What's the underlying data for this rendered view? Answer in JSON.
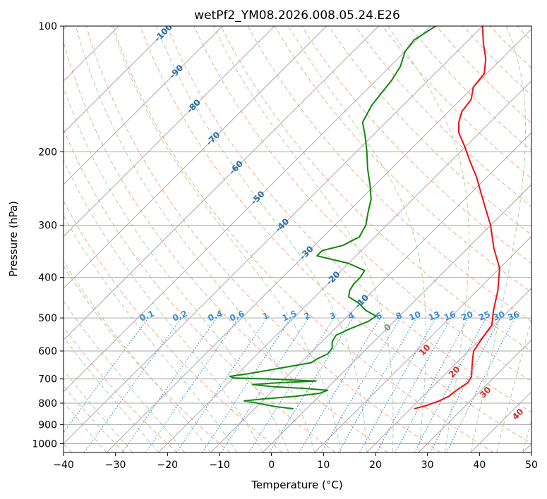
{
  "chart_data": {
    "type": "line",
    "subtype": "skew-t log-p diagram",
    "title": "wetPf2_YM08.2026.008.05.24.E26",
    "xlabel": "Temperature (°C)",
    "ylabel": "Pressure (hPa)",
    "xlim": [
      -40,
      50
    ],
    "ylim": [
      1050,
      100
    ],
    "x_ticks": [
      -40,
      -30,
      -20,
      -10,
      0,
      10,
      20,
      30,
      40,
      50
    ],
    "y_ticks": [
      100,
      200,
      300,
      400,
      500,
      600,
      700,
      800,
      900,
      1000
    ],
    "colors": {
      "temperature": "#ee1111",
      "dewpoint": "#118811",
      "isotherm": "#aaaaaa",
      "dry_adiabat": "#f5a88a",
      "moist_adiabat": "#a8d5a0",
      "mixing_ratio": "#3d8fd9",
      "isotherm_label": "#2a6db0",
      "moist_label": "#d0302a",
      "zero_label": "#888888"
    },
    "isotherm_labels": [
      "-100",
      "-90",
      "-80",
      "-70",
      "-60",
      "-50",
      "-40",
      "-30",
      "-20",
      "-10"
    ],
    "isotherm_label_values": [
      -100,
      -90,
      -80,
      -70,
      -60,
      -50,
      -40,
      -30,
      -20,
      -10
    ],
    "zero_label": "0",
    "moist_adiabat_labels": [
      "10",
      "20",
      "30",
      "40"
    ],
    "moist_adiabat_label_values": [
      10,
      20,
      30,
      40
    ],
    "mixing_ratio_labels": [
      "0.1",
      "0.2",
      "0.4",
      "0.6",
      "1",
      "1.5",
      "2",
      "3",
      "4",
      "6",
      "8",
      "10",
      "13",
      "16",
      "20",
      "25",
      "30",
      "36"
    ],
    "mixing_ratio_values": [
      0.1,
      0.2,
      0.4,
      0.6,
      1,
      1.5,
      2,
      3,
      4,
      6,
      8,
      10,
      13,
      16,
      20,
      25,
      30,
      36
    ],
    "series": [
      {
        "name": "Temperature",
        "points": [
          {
            "p": 825,
            "t": 20.7
          },
          {
            "p": 810,
            "t": 22.5
          },
          {
            "p": 790,
            "t": 24.0
          },
          {
            "p": 770,
            "t": 25.0
          },
          {
            "p": 750,
            "t": 25.2
          },
          {
            "p": 735,
            "t": 25.5
          },
          {
            "p": 715,
            "t": 26.0
          },
          {
            "p": 690,
            "t": 25.5
          },
          {
            "p": 660,
            "t": 24.0
          },
          {
            "p": 630,
            "t": 22.5
          },
          {
            "p": 600,
            "t": 21.0
          },
          {
            "p": 560,
            "t": 20.2
          },
          {
            "p": 520,
            "t": 19.5
          },
          {
            "p": 480,
            "t": 17.0
          },
          {
            "p": 430,
            "t": 14.0
          },
          {
            "p": 380,
            "t": 10.0
          },
          {
            "p": 340,
            "t": 5.0
          },
          {
            "p": 300,
            "t": 0.0
          },
          {
            "p": 260,
            "t": -6.5
          },
          {
            "p": 230,
            "t": -12.0
          },
          {
            "p": 210,
            "t": -16.5
          },
          {
            "p": 195,
            "t": -20.0
          },
          {
            "p": 180,
            "t": -24.0
          },
          {
            "p": 170,
            "t": -26.0
          },
          {
            "p": 160,
            "t": -27.5
          },
          {
            "p": 150,
            "t": -28.0
          },
          {
            "p": 140,
            "t": -30.0
          },
          {
            "p": 130,
            "t": -30.5
          },
          {
            "p": 120,
            "t": -33.0
          },
          {
            "p": 110,
            "t": -36.5
          },
          {
            "p": 100,
            "t": -40.0
          }
        ]
      },
      {
        "name": "Dewpoint",
        "points": [
          {
            "p": 825,
            "t": -2.5
          },
          {
            "p": 815,
            "t": -6.5
          },
          {
            "p": 800,
            "t": -10.5
          },
          {
            "p": 790,
            "t": -13.5
          },
          {
            "p": 780,
            "t": -9.5
          },
          {
            "p": 770,
            "t": -4.5
          },
          {
            "p": 758,
            "t": -0.5
          },
          {
            "p": 745,
            "t": 0.5
          },
          {
            "p": 738,
            "t": -4.0
          },
          {
            "p": 730,
            "t": -11.0
          },
          {
            "p": 722,
            "t": -15.0
          },
          {
            "p": 715,
            "t": -10.5
          },
          {
            "p": 708,
            "t": -3.5
          },
          {
            "p": 700,
            "t": -13.0
          },
          {
            "p": 696,
            "t": -20.0
          },
          {
            "p": 690,
            "t": -21.0
          },
          {
            "p": 680,
            "t": -18.0
          },
          {
            "p": 660,
            "t": -13.0
          },
          {
            "p": 640,
            "t": -8.0
          },
          {
            "p": 625,
            "t": -7.5
          },
          {
            "p": 610,
            "t": -6.5
          },
          {
            "p": 590,
            "t": -6.8
          },
          {
            "p": 570,
            "t": -8.0
          },
          {
            "p": 550,
            "t": -8.5
          },
          {
            "p": 530,
            "t": -7.0
          },
          {
            "p": 510,
            "t": -5.0
          },
          {
            "p": 495,
            "t": -4.5
          },
          {
            "p": 480,
            "t": -7.5
          },
          {
            "p": 460,
            "t": -10.5
          },
          {
            "p": 445,
            "t": -13.5
          },
          {
            "p": 430,
            "t": -14.5
          },
          {
            "p": 415,
            "t": -15.0
          },
          {
            "p": 400,
            "t": -15.0
          },
          {
            "p": 385,
            "t": -15.5
          },
          {
            "p": 370,
            "t": -20.0
          },
          {
            "p": 355,
            "t": -27.5
          },
          {
            "p": 345,
            "t": -27.5
          },
          {
            "p": 335,
            "t": -24.5
          },
          {
            "p": 320,
            "t": -23.0
          },
          {
            "p": 300,
            "t": -24.0
          },
          {
            "p": 280,
            "t": -26.0
          },
          {
            "p": 260,
            "t": -28.0
          },
          {
            "p": 240,
            "t": -31.0
          },
          {
            "p": 220,
            "t": -34.5
          },
          {
            "p": 200,
            "t": -38.0
          },
          {
            "p": 185,
            "t": -41.0
          },
          {
            "p": 170,
            "t": -44.5
          },
          {
            "p": 155,
            "t": -46.0
          },
          {
            "p": 145,
            "t": -46.5
          },
          {
            "p": 135,
            "t": -47.0
          },
          {
            "p": 125,
            "t": -48.0
          },
          {
            "p": 115,
            "t": -50.0
          },
          {
            "p": 108,
            "t": -50.5
          },
          {
            "p": 100,
            "t": -49.0
          }
        ]
      }
    ]
  }
}
